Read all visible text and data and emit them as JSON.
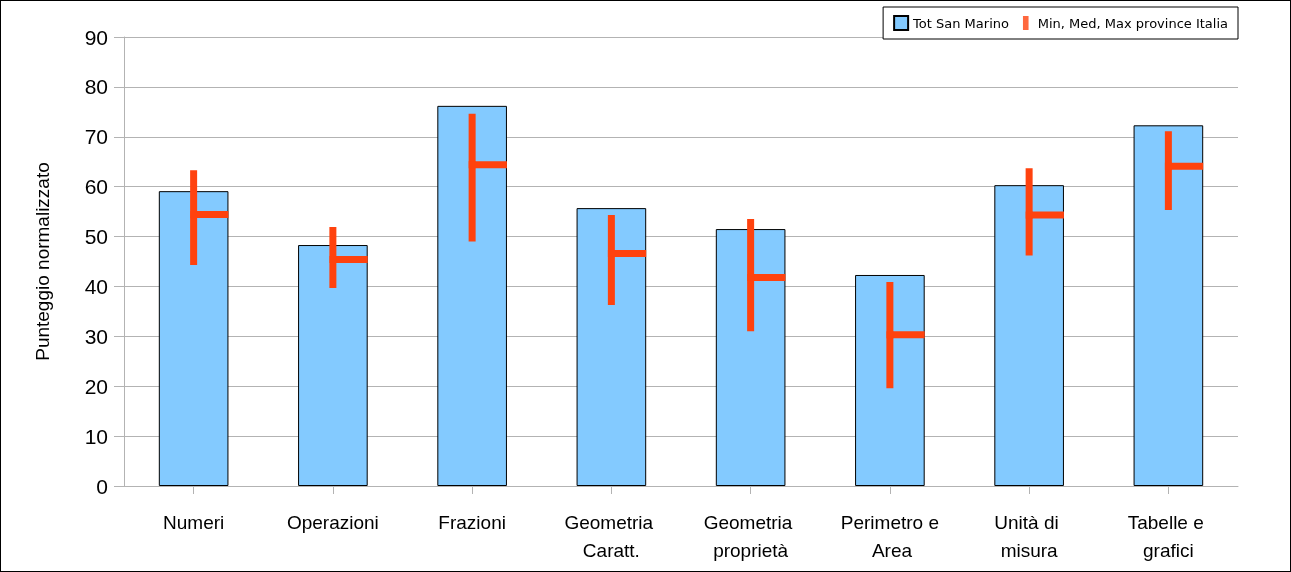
{
  "chart_data": {
    "type": "bar",
    "ylabel": "Punteggio normalizzato",
    "categories": [
      "Numeri",
      "Operazioni",
      "Frazioni",
      "Geometria Caratt.",
      "Geometria proprietà",
      "Perimetro e Area",
      "Unità di misura",
      "Tabelle e grafici"
    ],
    "series": [
      {
        "name": "Tot San Marino",
        "color": "#83caff",
        "values": [
          59.1,
          48.3,
          76.2,
          55.7,
          51.5,
          42.3,
          60.3,
          72.3
        ]
      },
      {
        "name": "Min, Med, Max province Italia",
        "type": "scatter",
        "color": "#ff420e",
        "values": [
          54.4,
          45.4,
          64.4,
          46.6,
          41.8,
          30.3,
          54.3,
          64.1
        ],
        "errors": [
          [
            44.3,
            63.3
          ],
          [
            39.7,
            51.9
          ],
          [
            49.0,
            74.6
          ],
          [
            36.3,
            54.3
          ],
          [
            31.0,
            53.5
          ],
          [
            19.6,
            40.9
          ],
          [
            46.2,
            63.7
          ],
          [
            55.3,
            71.1
          ]
        ]
      }
    ],
    "ylim": [
      0,
      90
    ],
    "yticks": [
      0,
      10,
      20,
      30,
      40,
      50,
      60,
      70,
      80,
      90
    ],
    "grid": "y",
    "legend": "top right"
  }
}
